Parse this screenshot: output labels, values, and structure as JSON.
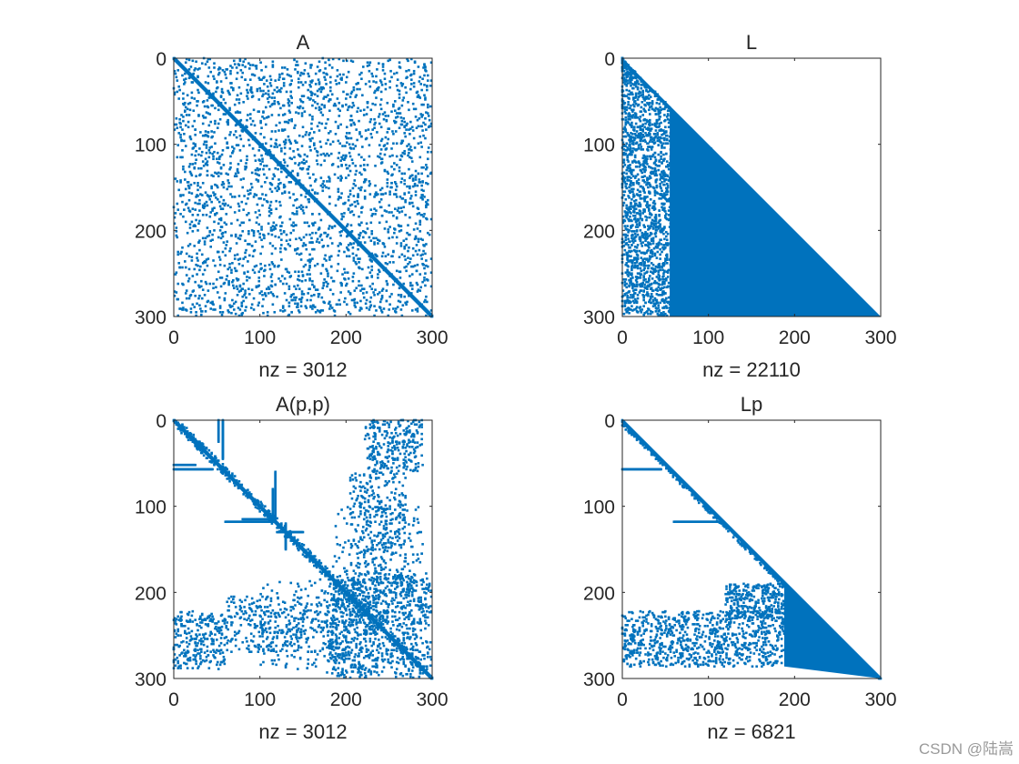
{
  "figure": {
    "background": "#ffffff",
    "marker_color": "#0072bd"
  },
  "watermark": "CSDN @陆嵩",
  "chart_data": [
    {
      "type": "spy",
      "id": "A",
      "title": "A",
      "xlabel": "nz = 3012",
      "n": 300,
      "nz": 3012,
      "xlim": [
        0,
        300
      ],
      "ylim": [
        0,
        300
      ],
      "xticks": [
        0,
        100,
        200,
        300
      ],
      "yticks": [
        0,
        100,
        200,
        300
      ],
      "y_reversed": true,
      "pattern": "random-sparse-with-diagonal"
    },
    {
      "type": "spy",
      "id": "L",
      "title": "L",
      "xlabel": "nz = 22110",
      "n": 300,
      "nz": 22110,
      "xlim": [
        0,
        300
      ],
      "ylim": [
        0,
        300
      ],
      "xticks": [
        0,
        100,
        200,
        300
      ],
      "yticks": [
        0,
        100,
        200,
        300
      ],
      "y_reversed": true,
      "pattern": "lower-triangular-dense"
    },
    {
      "type": "spy",
      "id": "App",
      "title": "A(p,p)",
      "xlabel": "nz = 3012",
      "n": 300,
      "nz": 3012,
      "xlim": [
        0,
        300
      ],
      "ylim": [
        0,
        300
      ],
      "xticks": [
        0,
        100,
        200,
        300
      ],
      "yticks": [
        0,
        100,
        200,
        300
      ],
      "y_reversed": true,
      "pattern": "reordered-symmetric"
    },
    {
      "type": "spy",
      "id": "Lp",
      "title": "Lp",
      "xlabel": "nz = 6821",
      "n": 300,
      "nz": 6821,
      "xlim": [
        0,
        300
      ],
      "ylim": [
        0,
        300
      ],
      "xticks": [
        0,
        100,
        200,
        300
      ],
      "yticks": [
        0,
        100,
        200,
        300
      ],
      "y_reversed": true,
      "pattern": "reordered-lower-triangular"
    }
  ]
}
